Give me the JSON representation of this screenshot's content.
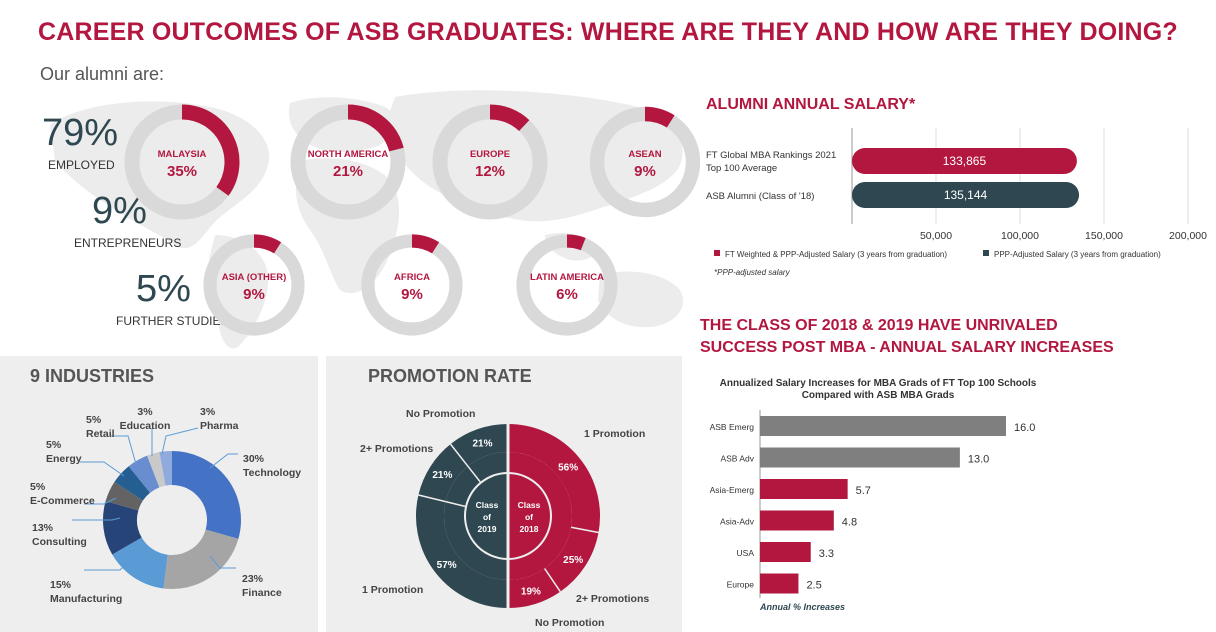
{
  "title": "CAREER OUTCOMES OF ASB GRADUATES: WHERE ARE THEY AND HOW ARE THEY DOING?",
  "alumni": {
    "intro": "Our alumni are:",
    "stats": [
      {
        "value": "79%",
        "label": "EMPLOYED"
      },
      {
        "value": "9%",
        "label": "ENTREPRENEURS"
      },
      {
        "value": "5%",
        "label": "FURTHER STUDIES"
      }
    ],
    "regions": [
      {
        "name": "MALAYSIA",
        "pct_text": "35%",
        "pct": 35
      },
      {
        "name": "NORTH AMERICA",
        "pct_text": "21%",
        "pct": 21
      },
      {
        "name": "EUROPE",
        "pct_text": "12%",
        "pct": 12
      },
      {
        "name": "ASEAN",
        "pct_text": "9%",
        "pct": 9
      },
      {
        "name": "ASIA (OTHER)",
        "pct_text": "9%",
        "pct": 9
      },
      {
        "name": "AFRICA",
        "pct_text": "9%",
        "pct": 9
      },
      {
        "name": "LATIN AMERICA",
        "pct_text": "6%",
        "pct": 6
      }
    ]
  },
  "salary": {
    "title": "ALUMNI ANNUAL SALARY*",
    "footnote": "*PPP-adjusted salary",
    "colors": {
      "ft": "#b3173f",
      "asb": "#2e4750"
    },
    "chart_data": {
      "type": "bar",
      "orientation": "horizontal",
      "categories": [
        "FT Global MBA Rankings 2021 Top 100 Average",
        "ASB Alumni (Class of '18)"
      ],
      "category_lines": [
        [
          "FT Global MBA Rankings 2021",
          "Top 100 Average"
        ],
        [
          "ASB Alumni (Class of '18)"
        ]
      ],
      "values": [
        133865,
        135144
      ],
      "value_labels": [
        "133,865",
        "135,144"
      ],
      "xticks": [
        "50,000",
        "100,000",
        "150,000",
        "200,000"
      ],
      "xtick_values": [
        50000,
        100000,
        150000,
        200000
      ],
      "xlim": [
        0,
        200000
      ],
      "legend": [
        "FT Weighted & PPP-Adjusted Salary (3 years from graduation)",
        "PPP-Adjusted Salary (3 years from graduation)"
      ]
    }
  },
  "industries": {
    "title": "9 INDUSTRIES",
    "chart_data": {
      "type": "pie",
      "slices": [
        {
          "name": "Technology",
          "pct_text": "30%",
          "value": 30,
          "color": "#4472c4"
        },
        {
          "name": "Finance",
          "pct_text": "23%",
          "value": 23,
          "color": "#a5a5a5"
        },
        {
          "name": "Manufacturing",
          "pct_text": "15%",
          "value": 15,
          "color": "#5b9bd5"
        },
        {
          "name": "Consulting",
          "pct_text": "13%",
          "value": 13,
          "color": "#264478"
        },
        {
          "name": "E-Commerce",
          "pct_text": "5%",
          "value": 5,
          "color": "#636363"
        },
        {
          "name": "Energy",
          "pct_text": "5%",
          "value": 5,
          "color": "#255e91"
        },
        {
          "name": "Retail",
          "pct_text": "5%",
          "value": 5,
          "color": "#698ed0"
        },
        {
          "name": "Education",
          "pct_text": "3%",
          "value": 3,
          "color": "#c9c9c9"
        },
        {
          "name": "Pharma",
          "pct_text": "3%",
          "value": 3,
          "color": "#8faadc"
        }
      ]
    }
  },
  "promotion": {
    "title": "PROMOTION RATE",
    "chart_data": {
      "type": "pie",
      "rings": [
        {
          "name": "Class of 2018",
          "center_lines": [
            "Class",
            "of",
            "2018"
          ],
          "color": "#b3173f",
          "slices": [
            {
              "name": "1 Promotion",
              "pct_text": "56%",
              "value": 56
            },
            {
              "name": "2+ Promotions",
              "pct_text": "25%",
              "value": 25
            },
            {
              "name": "No Promotion",
              "pct_text": "19%",
              "value": 19
            }
          ]
        },
        {
          "name": "Class of 2019",
          "center_lines": [
            "Class",
            "of",
            "2019"
          ],
          "color": "#2e4750",
          "slices": [
            {
              "name": "1 Promotion",
              "pct_text": "57%",
              "value": 57
            },
            {
              "name": "2+ Promotions",
              "pct_text": "21%",
              "value": 21
            },
            {
              "name": "No Promotion",
              "pct_text": "21%",
              "value": 21
            }
          ]
        }
      ]
    }
  },
  "increases": {
    "title_line1": "THE CLASS OF 2018 & 2019 HAVE UNRIVALED",
    "title_line2": "SUCCESS POST MBA - ANNUAL SALARY INCREASES",
    "chart_data": {
      "type": "bar",
      "orientation": "horizontal",
      "title_lines": [
        "Annualized Salary Increases for MBA Grads of FT Top 100 Schools",
        "Compared with ASB MBA Grads"
      ],
      "xlabel": "Annual % Increases",
      "categories": [
        "ASB Emerg",
        "ASB Adv",
        "Asia-Emerg",
        "Asia-Adv",
        "USA",
        "Europe"
      ],
      "values": [
        16.0,
        13.0,
        5.7,
        4.8,
        3.3,
        2.5
      ],
      "value_labels": [
        "16.0",
        "13.0",
        "5.7",
        "4.8",
        "3.3",
        "2.5"
      ],
      "colors": [
        "#7f7f7f",
        "#7f7f7f",
        "#b3173f",
        "#b3173f",
        "#b3173f",
        "#b3173f"
      ],
      "xlim": [
        0,
        16
      ]
    }
  }
}
